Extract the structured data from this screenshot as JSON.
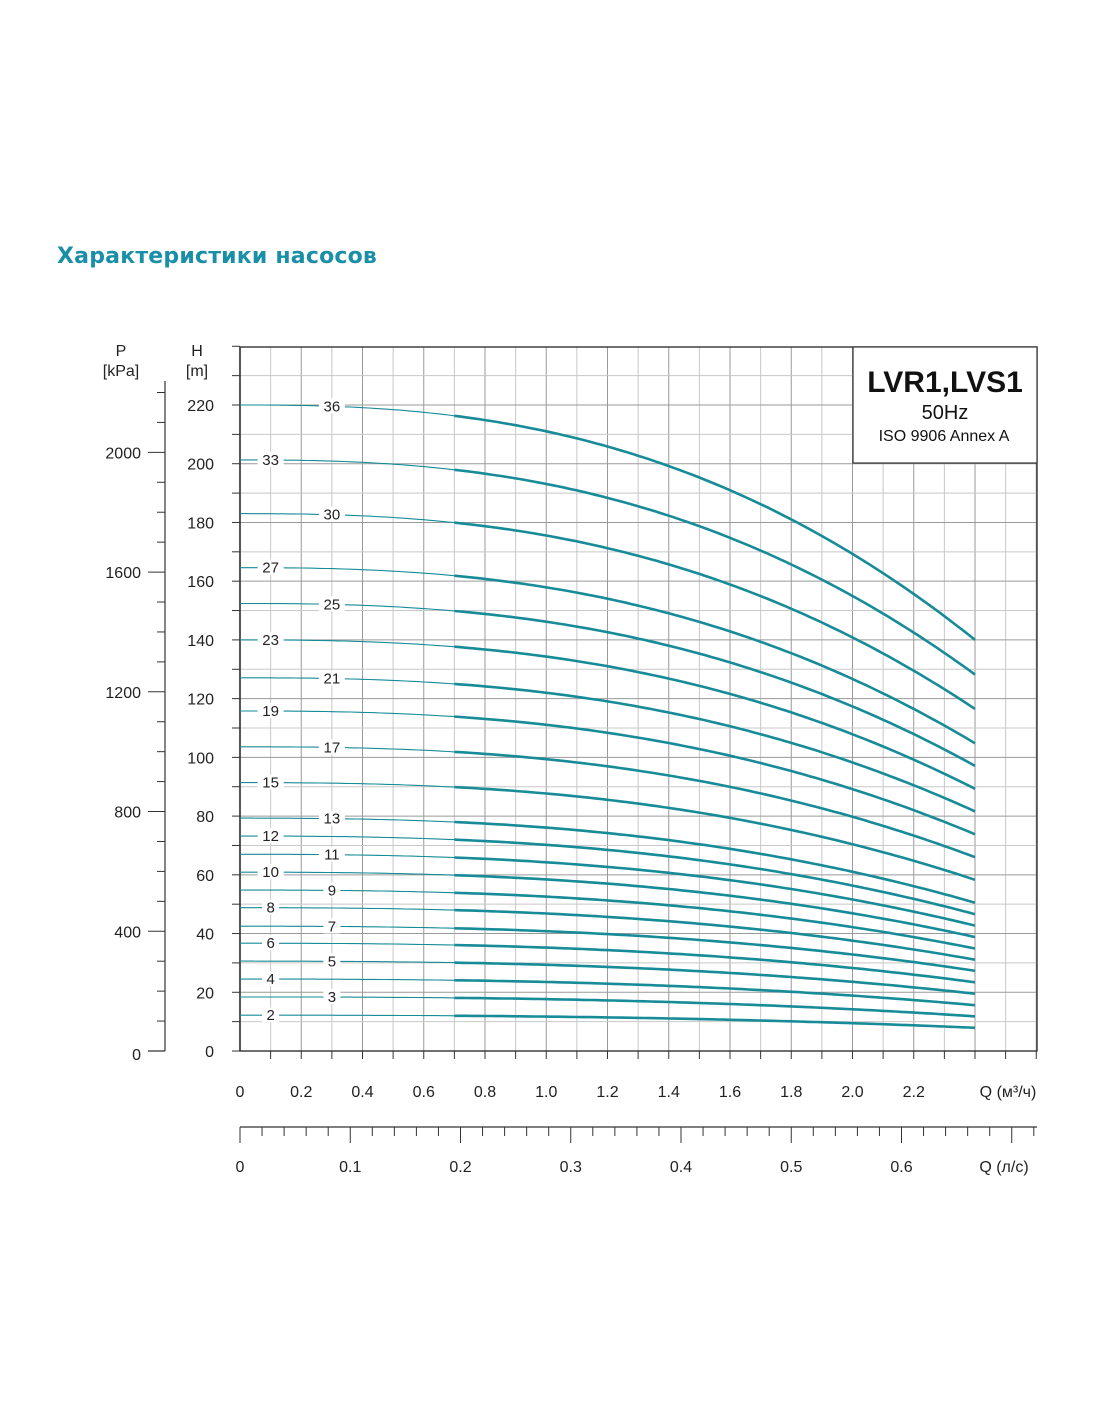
{
  "page": {
    "title": "Характеристики насосов"
  },
  "chart_data": {
    "type": "line",
    "model": {
      "name": "LVR1,LVS1",
      "frequency": "50Hz",
      "standard": "ISO 9906 Annex A"
    },
    "x_label": "Q (м³/ч)",
    "x2_label": "Q (л/с)",
    "y_label": "H\n[m]",
    "y_label_lines": [
      "H",
      "[m]"
    ],
    "p_label_lines": [
      "P",
      "[kPa]"
    ],
    "xlim": [
      0,
      2.6
    ],
    "ylim": [
      0,
      240
    ],
    "x_ticks": [
      0,
      0.2,
      0.4,
      0.6,
      0.8,
      1.0,
      1.2,
      1.4,
      1.6,
      1.8,
      2.0,
      2.2
    ],
    "x_tick_labels": [
      "0",
      "0.2",
      "0.4",
      "0.6",
      "0.8",
      "1.0",
      "1.2",
      "1.4",
      "1.6",
      "1.8",
      "2.0",
      "2.2"
    ],
    "x2_ticks": [
      0,
      0.1,
      0.2,
      0.3,
      0.4,
      0.5,
      0.6
    ],
    "x2_tick_labels": [
      "0",
      "0.1",
      "0.2",
      "0.3",
      "0.4",
      "0.5",
      "0.6"
    ],
    "y_ticks": [
      0,
      20,
      40,
      60,
      80,
      100,
      120,
      140,
      160,
      180,
      200,
      220
    ],
    "y_tick_labels": [
      "0",
      "20",
      "40",
      "60",
      "80",
      "100",
      "120",
      "140",
      "160",
      "180",
      "200",
      "220"
    ],
    "p_ticks": [
      0,
      400,
      800,
      1200,
      1600,
      2000
    ],
    "p_tick_labels": [
      "0",
      "400",
      "800",
      "1200",
      "1600",
      "2000"
    ],
    "grid": true,
    "color": "#178b98",
    "operating_range_start": 0.7,
    "label_positions_x": [
      0.1,
      0.3
    ],
    "series": [
      {
        "name": "2",
        "h0": 12.2,
        "h_end": 7.9
      },
      {
        "name": "3",
        "h0": 18.4,
        "h_end": 11.8
      },
      {
        "name": "4",
        "h0": 24.5,
        "h_end": 15.6
      },
      {
        "name": "5",
        "h0": 30.6,
        "h_end": 19.5
      },
      {
        "name": "6",
        "h0": 36.7,
        "h_end": 23.4
      },
      {
        "name": "7",
        "h0": 42.5,
        "h_end": 27.3
      },
      {
        "name": "8",
        "h0": 48.8,
        "h_end": 31.1
      },
      {
        "name": "9",
        "h0": 54.8,
        "h_end": 34.9
      },
      {
        "name": "10",
        "h0": 60.9,
        "h_end": 38.8
      },
      {
        "name": "11",
        "h0": 67.0,
        "h_end": 42.7
      },
      {
        "name": "12",
        "h0": 73.2,
        "h_end": 46.6
      },
      {
        "name": "13",
        "h0": 79.3,
        "h_end": 50.5
      },
      {
        "name": "15",
        "h0": 91.4,
        "h_end": 58.3
      },
      {
        "name": "17",
        "h0": 103.6,
        "h_end": 66.0
      },
      {
        "name": "19",
        "h0": 115.8,
        "h_end": 73.8
      },
      {
        "name": "21",
        "h0": 127.1,
        "h_end": 81.6
      },
      {
        "name": "23",
        "h0": 140.0,
        "h_end": 89.3
      },
      {
        "name": "25",
        "h0": 152.4,
        "h_end": 97.1
      },
      {
        "name": "27",
        "h0": 164.6,
        "h_end": 104.8
      },
      {
        "name": "30",
        "h0": 183.0,
        "h_end": 116.5
      },
      {
        "name": "33",
        "h0": 201.3,
        "h_end": 128.2
      },
      {
        "name": "36",
        "h0": 220.0,
        "h_end": 140.0
      }
    ]
  }
}
